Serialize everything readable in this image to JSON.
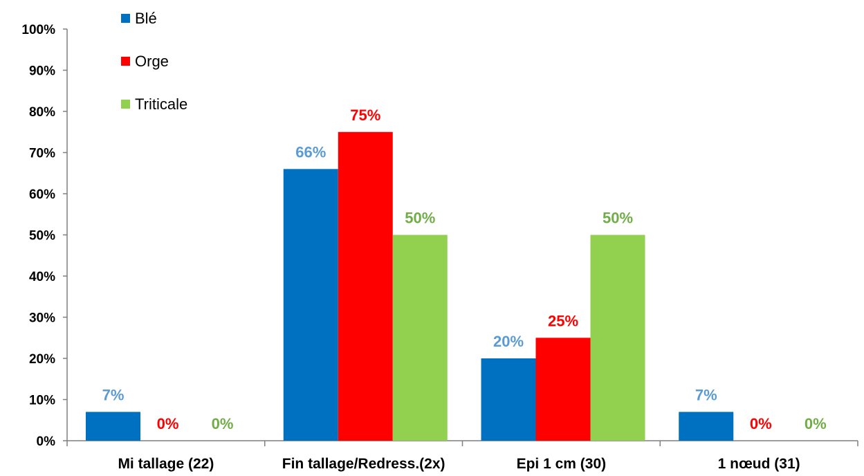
{
  "chart_data": {
    "type": "bar",
    "categories": [
      "Mi tallage (22)",
      "Fin tallage/Redress.(2x)",
      "Epi 1 cm (30)",
      "1 nœud (31)"
    ],
    "series": [
      {
        "name": "Blé",
        "color": "#0070C0",
        "label_color": "#5B9BD5",
        "values": [
          7,
          66,
          20,
          7
        ],
        "labels": [
          "7%",
          "66%",
          "20%",
          "7%"
        ]
      },
      {
        "name": "Orge",
        "color": "#FF0000",
        "label_color": "#FF0000",
        "values": [
          0,
          75,
          25,
          0
        ],
        "labels": [
          "0%",
          "75%",
          "25%",
          "0%"
        ]
      },
      {
        "name": "Triticale",
        "color": "#92D050",
        "label_color": "#70AD47",
        "values": [
          0,
          50,
          50,
          0
        ],
        "labels": [
          "0%",
          "50%",
          "50%",
          "0%"
        ]
      }
    ],
    "y_ticks": [
      "0%",
      "10%",
      "20%",
      "30%",
      "40%",
      "50%",
      "60%",
      "70%",
      "80%",
      "90%",
      "100%"
    ],
    "ylim": [
      0,
      100
    ],
    "grid": false,
    "legend_position": "top-left"
  }
}
